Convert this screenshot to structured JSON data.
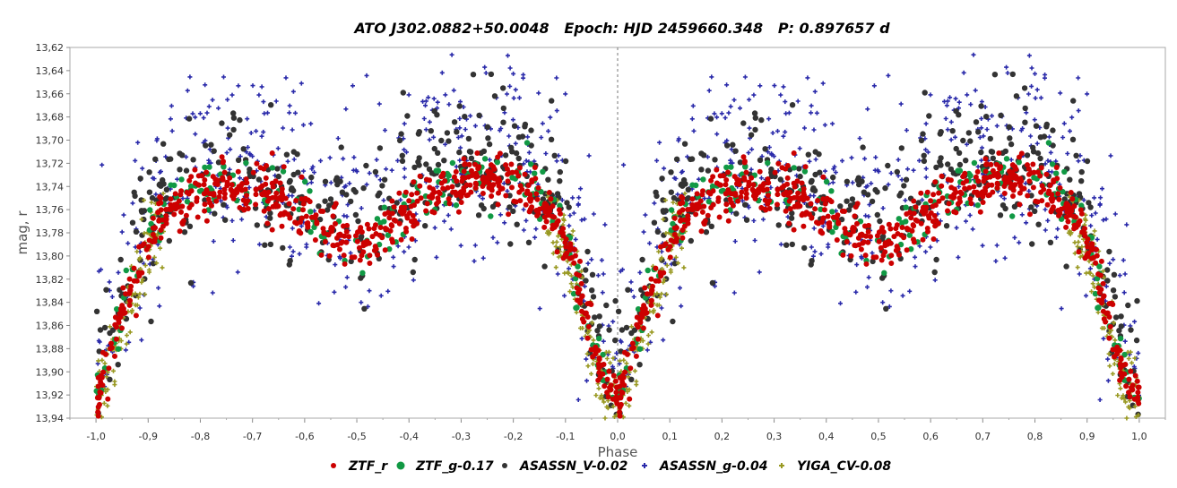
{
  "chart_data": {
    "type": "scatter",
    "title": "ATO J302.0882+50.0048   Epoch: HJD 2459660.348   P: 0.897657 d",
    "xlabel": "Phase",
    "ylabel": "mag, r",
    "xlim": [
      -1.05,
      1.05
    ],
    "ylim": [
      13.62,
      13.94
    ],
    "y_inverted": true,
    "grid": false,
    "zero_line": "dashed vertical at phase 0.0",
    "legend_position": "bottom",
    "x_ticks": [
      "-1,0",
      "-0,9",
      "-0,8",
      "-0,7",
      "-0,6",
      "-0,5",
      "-0,4",
      "-0,3",
      "-0,2",
      "-0,1",
      "0,0",
      "0,1",
      "0,2",
      "0,3",
      "0,4",
      "0,5",
      "0,6",
      "0,7",
      "0,8",
      "0,9",
      "1,0"
    ],
    "y_ticks": [
      "13,62",
      "13,64",
      "13,66",
      "13,68",
      "13,70",
      "13,72",
      "13,74",
      "13,76",
      "13,78",
      "13,80",
      "13,82",
      "13,84",
      "13,86",
      "13,88",
      "13,90",
      "13,92",
      "13,94"
    ],
    "light_curve_model": {
      "phase": [
        0.0,
        0.03,
        0.06,
        0.09,
        0.12,
        0.15,
        0.2,
        0.25,
        0.3,
        0.35,
        0.4,
        0.45,
        0.5,
        0.55,
        0.6,
        0.65,
        0.7,
        0.75,
        0.8,
        0.85,
        0.88,
        0.91,
        0.94,
        0.97,
        1.0
      ],
      "mag": [
        13.925,
        13.88,
        13.84,
        13.8,
        13.77,
        13.755,
        13.745,
        13.74,
        13.745,
        13.75,
        13.765,
        13.78,
        13.795,
        13.78,
        13.76,
        13.745,
        13.735,
        13.735,
        13.74,
        13.75,
        13.77,
        13.8,
        13.85,
        13.9,
        13.925
      ]
    },
    "series": [
      {
        "name": "ZTF_r",
        "color": "#cc0000",
        "marker": "circle",
        "offset": 0,
        "points": 650,
        "scatter_mag": 0.01
      },
      {
        "name": "ZTF_g-0.17",
        "color": "#119944",
        "marker": "circle",
        "offset": -0.004,
        "points": 170,
        "scatter_mag": 0.013
      },
      {
        "name": "ASASSN_V-0.02",
        "color": "#333333",
        "marker": "circle",
        "offset": -0.02,
        "points": 380,
        "scatter_mag": 0.03
      },
      {
        "name": "ASASSN_g-0.04",
        "color": "#2a2aaa",
        "marker": "plus",
        "offset": -0.03,
        "points": 480,
        "scatter_mag": 0.045
      },
      {
        "name": "YIGA_CV-0.08",
        "color": "#999922",
        "marker": "plus",
        "offset": 0.005,
        "points": 260,
        "scatter_mag": 0.018,
        "phase_windows": [
          [
            0.86,
            1.0
          ],
          [
            0.0,
            0.13
          ]
        ]
      }
    ]
  }
}
